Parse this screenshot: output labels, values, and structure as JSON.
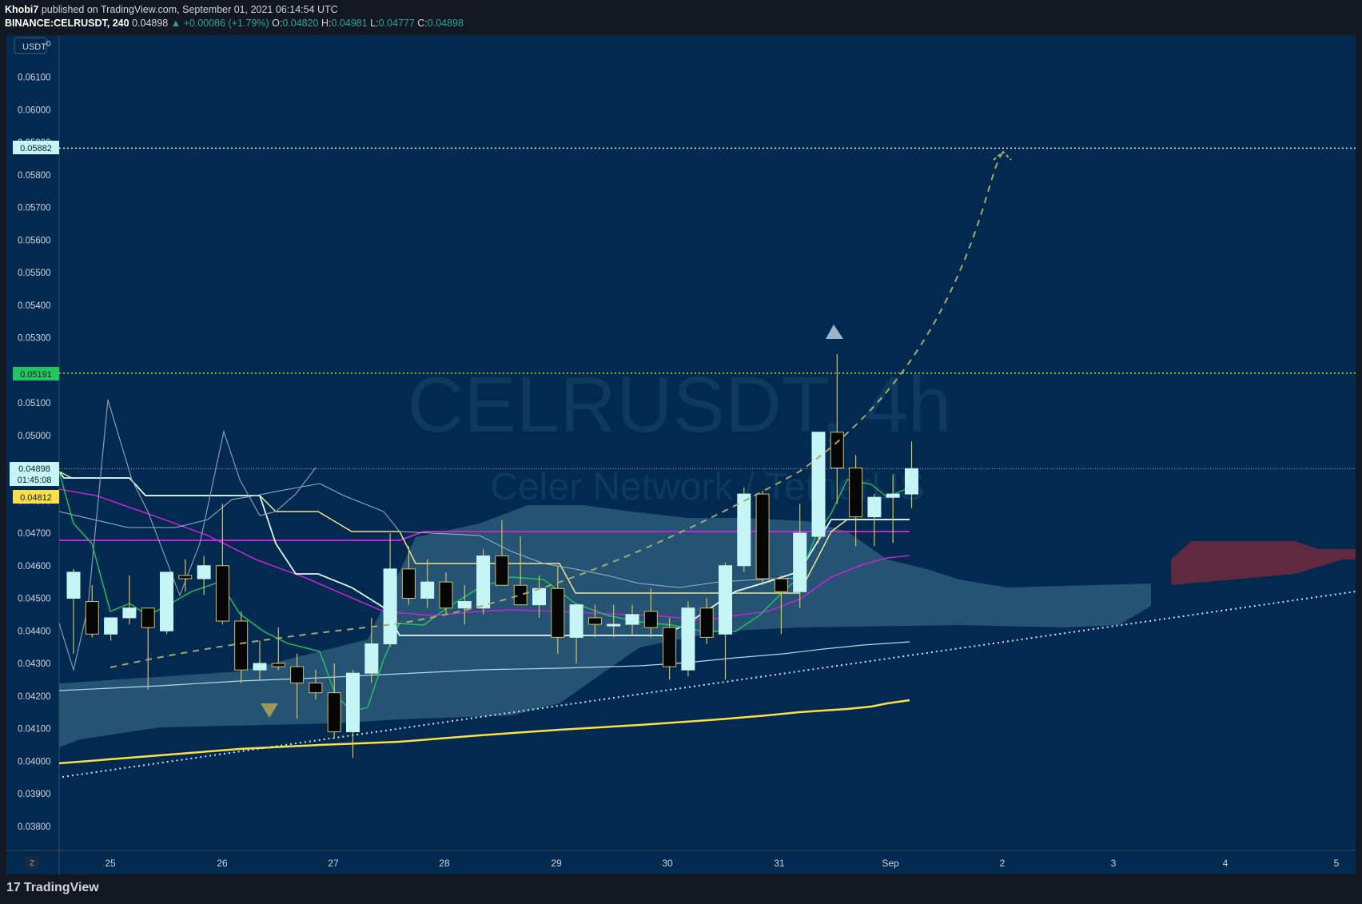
{
  "header": {
    "author": "Khobi7",
    "published_text": "published on TradingView.com, September 01, 2021 06:14:54 UTC",
    "symbol": "BINANCE:CELRUSDT, 240",
    "last": "0.04898",
    "change": "▲ +0.00086 (+1.79%)",
    "o_label": "O:",
    "o": "0.04820",
    "h_label": "H:",
    "h": "0.04981",
    "l_label": "L:",
    "l": "0.04777",
    "c_label": "C:",
    "c": "0.04898"
  },
  "watermark": {
    "title": "CELRUSDT, 4h",
    "subtitle": "Celer Network / TetherUS"
  },
  "price_axis": {
    "unit": "USDT",
    "unit_badge": "0",
    "scale_mode": "Z"
  },
  "badges": {
    "target": "0.05882",
    "resistance": "0.05191",
    "last_price": "0.04898",
    "countdown": "01:45:08",
    "ma_value": "0.04812"
  },
  "branding": "TradingView",
  "colors": {
    "background": "#02294f",
    "bull_candle": "#c6f5f5",
    "bear_candle": "#050505",
    "wick": "#d4c060",
    "cloud": "#2a5b79",
    "red_cloud": "#5f2a3f",
    "magenta": "#c026d3",
    "ma_yellow": "#fde047",
    "green_line": "#22c55e",
    "white_line": "#e0f7fa",
    "target_line": "#e5e7eb",
    "resistance_line": "#a3e635"
  },
  "chart_data": {
    "type": "candlestick",
    "ylim": [
      0.0375,
      0.0625
    ],
    "y_ticks": [
      "0.06100",
      "0.06000",
      "0.05900",
      "0.05800",
      "0.05700",
      "0.05600",
      "0.05500",
      "0.05400",
      "0.05300",
      "0.05200",
      "0.05100",
      "0.05000",
      "0.04900",
      "0.04800",
      "0.04700",
      "0.04600",
      "0.04500",
      "0.04400",
      "0.04300",
      "0.04200",
      "0.04100",
      "0.04000",
      "0.03900",
      "0.03800"
    ],
    "x_ticks": [
      "25",
      "26",
      "27",
      "28",
      "29",
      "30",
      "31",
      "Sep",
      "2",
      "3",
      "4",
      "5"
    ],
    "bar_interval": "4h",
    "candles": [
      {
        "o": 0.045,
        "h": 0.0459,
        "l": 0.0433,
        "c": 0.0458
      },
      {
        "o": 0.0449,
        "h": 0.0454,
        "l": 0.0438,
        "c": 0.0439
      },
      {
        "o": 0.0439,
        "h": 0.0442,
        "l": 0.0437,
        "c": 0.0444
      },
      {
        "o": 0.0444,
        "h": 0.0457,
        "l": 0.0442,
        "c": 0.0447
      },
      {
        "o": 0.0447,
        "h": 0.0447,
        "l": 0.0422,
        "c": 0.0441
      },
      {
        "o": 0.044,
        "h": 0.0456,
        "l": 0.0439,
        "c": 0.0458
      },
      {
        "o": 0.0457,
        "h": 0.0462,
        "l": 0.0452,
        "c": 0.0456
      },
      {
        "o": 0.0456,
        "h": 0.0463,
        "l": 0.0451,
        "c": 0.046
      },
      {
        "o": 0.046,
        "h": 0.0479,
        "l": 0.0442,
        "c": 0.0443
      },
      {
        "o": 0.0443,
        "h": 0.0446,
        "l": 0.0424,
        "c": 0.0428
      },
      {
        "o": 0.0428,
        "h": 0.0437,
        "l": 0.0425,
        "c": 0.043
      },
      {
        "o": 0.043,
        "h": 0.0441,
        "l": 0.0428,
        "c": 0.0429
      },
      {
        "o": 0.0429,
        "h": 0.0433,
        "l": 0.0413,
        "c": 0.0424
      },
      {
        "o": 0.0424,
        "h": 0.0428,
        "l": 0.0419,
        "c": 0.0421
      },
      {
        "o": 0.0421,
        "h": 0.043,
        "l": 0.0407,
        "c": 0.0409
      },
      {
        "o": 0.0409,
        "h": 0.0428,
        "l": 0.0401,
        "c": 0.0427
      },
      {
        "o": 0.0427,
        "h": 0.0444,
        "l": 0.0424,
        "c": 0.0436
      },
      {
        "o": 0.0436,
        "h": 0.047,
        "l": 0.0435,
        "c": 0.0459
      },
      {
        "o": 0.0459,
        "h": 0.0466,
        "l": 0.0448,
        "c": 0.045
      },
      {
        "o": 0.045,
        "h": 0.0462,
        "l": 0.0447,
        "c": 0.0455
      },
      {
        "o": 0.0455,
        "h": 0.0458,
        "l": 0.0445,
        "c": 0.0447
      },
      {
        "o": 0.0447,
        "h": 0.0454,
        "l": 0.0442,
        "c": 0.0449
      },
      {
        "o": 0.0447,
        "h": 0.0465,
        "l": 0.0445,
        "c": 0.0463
      },
      {
        "o": 0.0463,
        "h": 0.0474,
        "l": 0.0456,
        "c": 0.0454
      },
      {
        "o": 0.0454,
        "h": 0.0469,
        "l": 0.0449,
        "c": 0.0448
      },
      {
        "o": 0.0448,
        "h": 0.0457,
        "l": 0.0444,
        "c": 0.0453
      },
      {
        "o": 0.0453,
        "h": 0.046,
        "l": 0.0433,
        "c": 0.0438
      },
      {
        "o": 0.0438,
        "h": 0.0447,
        "l": 0.043,
        "c": 0.0448
      },
      {
        "o": 0.0444,
        "h": 0.0448,
        "l": 0.0438,
        "c": 0.0442
      },
      {
        "o": 0.0442,
        "h": 0.0448,
        "l": 0.0438,
        "c": 0.0442
      },
      {
        "o": 0.0442,
        "h": 0.0448,
        "l": 0.0439,
        "c": 0.0445
      },
      {
        "o": 0.0446,
        "h": 0.0453,
        "l": 0.0438,
        "c": 0.0441
      },
      {
        "o": 0.0441,
        "h": 0.0444,
        "l": 0.0425,
        "c": 0.0429
      },
      {
        "o": 0.0428,
        "h": 0.0449,
        "l": 0.0426,
        "c": 0.0447
      },
      {
        "o": 0.0447,
        "h": 0.045,
        "l": 0.0436,
        "c": 0.0438
      },
      {
        "o": 0.0439,
        "h": 0.0461,
        "l": 0.0425,
        "c": 0.046
      },
      {
        "o": 0.046,
        "h": 0.0484,
        "l": 0.0458,
        "c": 0.0482
      },
      {
        "o": 0.0482,
        "h": 0.0483,
        "l": 0.0454,
        "c": 0.0456
      },
      {
        "o": 0.0456,
        "h": 0.0457,
        "l": 0.0439,
        "c": 0.0452
      },
      {
        "o": 0.0452,
        "h": 0.0479,
        "l": 0.0447,
        "c": 0.047
      },
      {
        "o": 0.0469,
        "h": 0.0501,
        "l": 0.0467,
        "c": 0.0501
      },
      {
        "o": 0.0501,
        "h": 0.0525,
        "l": 0.0479,
        "c": 0.049
      },
      {
        "o": 0.049,
        "h": 0.0494,
        "l": 0.0466,
        "c": 0.0475
      },
      {
        "o": 0.0475,
        "h": 0.0482,
        "l": 0.0466,
        "c": 0.0481
      },
      {
        "o": 0.0481,
        "h": 0.0488,
        "l": 0.0467,
        "c": 0.0482
      },
      {
        "o": 0.0482,
        "h": 0.04981,
        "l": 0.04777,
        "c": 0.04898
      }
    ],
    "annotations": [
      "projected dashed path to 0.05882",
      "rising dotted trendline",
      "up arrow above candle 41",
      "down arrow near candle 11"
    ]
  }
}
